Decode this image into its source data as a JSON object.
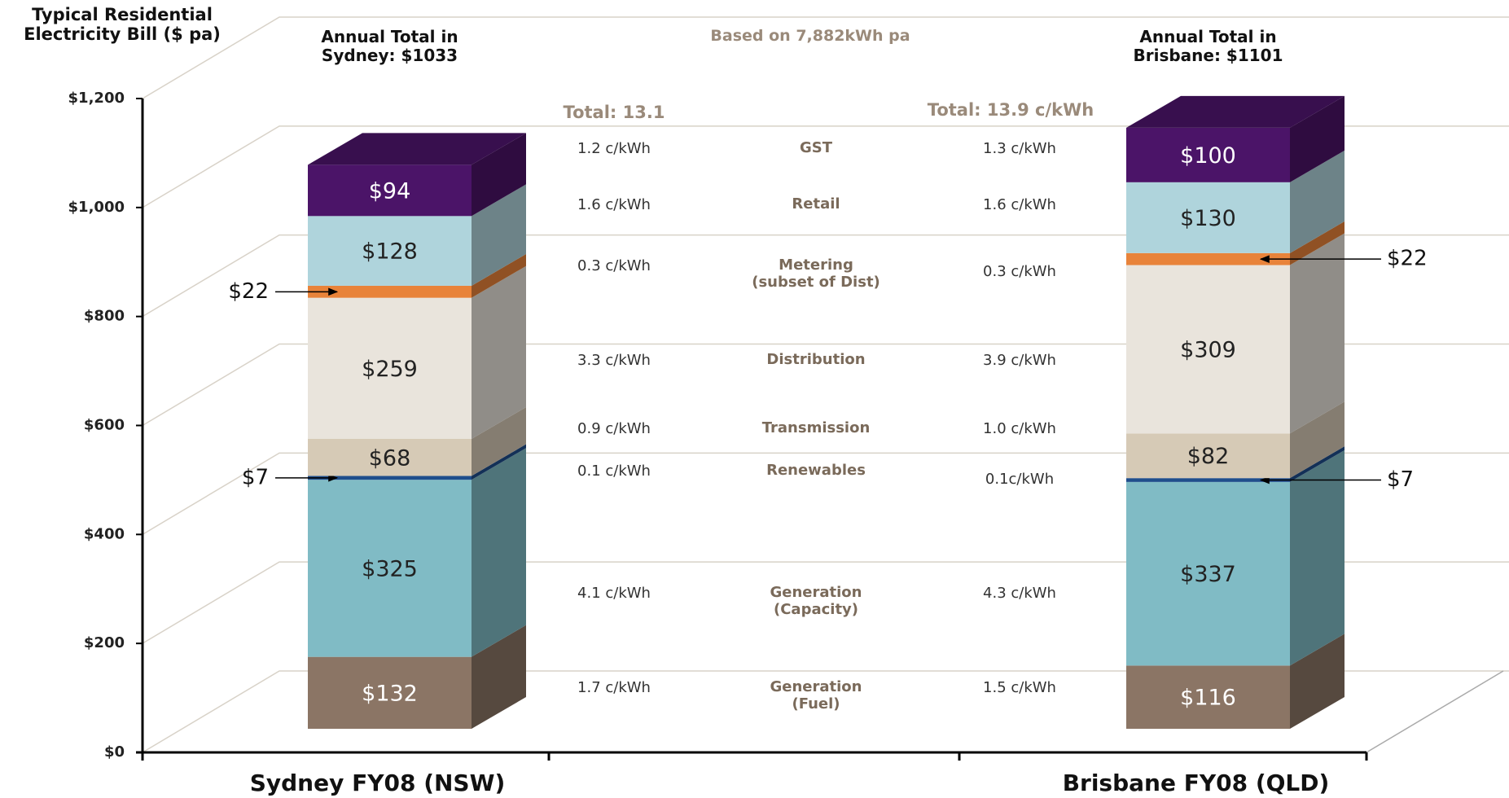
{
  "chart_data": {
    "type": "bar",
    "stacked": true,
    "title": "Typical Residential Electricity Bill ($ pa)",
    "subtitle": "Based on 7,882kWh pa",
    "categories": [
      "Sydney FY08 (NSW)",
      "Brisbane FY08 (QLD)"
    ],
    "annual_totals": [
      "Annual Total in Sydney: $1033",
      "Annual Total in Brisbane: $1101"
    ],
    "rate_totals": [
      "Total: 13.1",
      "Total: 13.9 c/kWh"
    ],
    "ylim": [
      0,
      1200
    ],
    "yticks": [
      {
        "value": 0,
        "label": "$0"
      },
      {
        "value": 200,
        "label": "$200"
      },
      {
        "value": 400,
        "label": "$400"
      },
      {
        "value": 600,
        "label": "$600"
      },
      {
        "value": 800,
        "label": "$800"
      },
      {
        "value": 1000,
        "label": "$1,000"
      },
      {
        "value": 1200,
        "label": "$1,200"
      }
    ],
    "grid": true,
    "series": [
      {
        "name": "Generation (Fuel)",
        "color": "#8b7565",
        "values": [
          132,
          116
        ],
        "value_labels": [
          "$132",
          "$116"
        ],
        "rates": [
          "1.7 c/kWh",
          "1.5 c/kWh"
        ]
      },
      {
        "name": "Generation (Capacity)",
        "color": "#80bbc5",
        "values": [
          325,
          337
        ],
        "value_labels": [
          "$325",
          "$337"
        ],
        "rates": [
          "4.1 c/kWh",
          "4.3 c/kWh"
        ]
      },
      {
        "name": "Renewables",
        "color": "#1f4e8c",
        "values": [
          7,
          7
        ],
        "value_labels": [
          "$7",
          "$7"
        ],
        "rates": [
          "0.1 c/kWh",
          "0.1c/kWh"
        ],
        "label_outside": true
      },
      {
        "name": "Transmission",
        "color": "#d6cab6",
        "values": [
          68,
          82
        ],
        "value_labels": [
          "$68",
          "$82"
        ],
        "rates": [
          "0.9 c/kWh",
          "1.0 c/kWh"
        ]
      },
      {
        "name": "Distribution",
        "color": "#e9e4dc",
        "values": [
          259,
          309
        ],
        "value_labels": [
          "$259",
          "$309"
        ],
        "rates": [
          "3.3 c/kWh",
          "3.9 c/kWh"
        ]
      },
      {
        "name": "Metering (subset of Dist)",
        "color": "#e8833a",
        "values": [
          22,
          22
        ],
        "value_labels": [
          "$22",
          "$22"
        ],
        "rates": [
          "0.3 c/kWh",
          "0.3 c/kWh"
        ],
        "label_outside": true
      },
      {
        "name": "Retail",
        "color": "#afd4dc",
        "values": [
          128,
          130
        ],
        "value_labels": [
          "$128",
          "$130"
        ],
        "rates": [
          "1.6 c/kWh",
          "1.6 c/kWh"
        ]
      },
      {
        "name": "GST",
        "color": "#4b1468",
        "values": [
          94,
          100
        ],
        "value_labels": [
          "$94",
          "$100"
        ],
        "rates": [
          "1.2 c/kWh",
          "1.3 c/kWh"
        ]
      }
    ]
  }
}
